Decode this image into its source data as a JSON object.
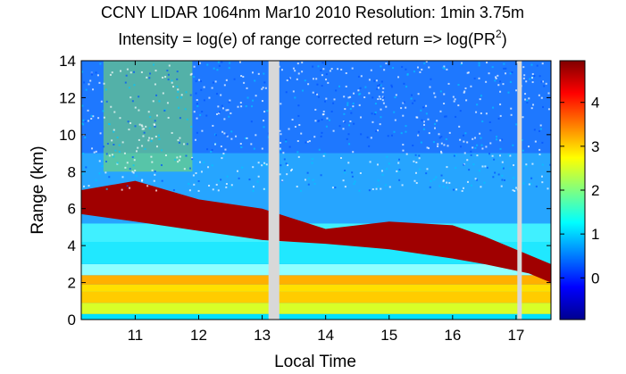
{
  "chart_data": {
    "type": "heatmap",
    "title": "CCNY LIDAR 1064nm Mar10 2010 Resolution: 1min 3.75m",
    "subtitle": {
      "prefix": "Intensity = log(e) of range corrected return => log(PR",
      "superscript": "2",
      "suffix": ")"
    },
    "xlabel": "Local Time",
    "ylabel": "Range (km)",
    "xlim": [
      10.15,
      17.55
    ],
    "ylim": [
      0,
      14
    ],
    "x_ticks": [
      11,
      12,
      13,
      14,
      15,
      16,
      17
    ],
    "y_ticks": [
      0,
      2,
      4,
      6,
      8,
      10,
      12,
      14
    ],
    "colorbar": {
      "range": [
        -0.95,
        4.95
      ],
      "ticks": [
        0,
        1,
        2,
        3,
        4
      ],
      "colormap": "jet"
    },
    "data_gaps": [
      {
        "start": 13.1,
        "end": 13.27
      },
      {
        "start": 17.02,
        "end": 17.09
      }
    ],
    "features": {
      "cloud_base_km": [
        {
          "time": 10.15,
          "base": 5.7,
          "top": 7.0
        },
        {
          "time": 11.0,
          "base": 5.3,
          "top": 7.5
        },
        {
          "time": 12.0,
          "base": 4.8,
          "top": 6.5
        },
        {
          "time": 13.0,
          "base": 4.3,
          "top": 6.0
        },
        {
          "time": 14.0,
          "base": 4.1,
          "top": 4.9
        },
        {
          "time": 15.0,
          "base": 3.8,
          "top": 5.3
        },
        {
          "time": 16.0,
          "base": 3.3,
          "top": 5.1
        },
        {
          "time": 16.5,
          "base": 3.0,
          "top": 4.5
        },
        {
          "time": 17.2,
          "base": 2.5,
          "top": 3.5
        },
        {
          "time": 17.55,
          "base": 2.0,
          "top": 3.0
        }
      ],
      "boundary_layer_top_km": 2.3
    }
  }
}
